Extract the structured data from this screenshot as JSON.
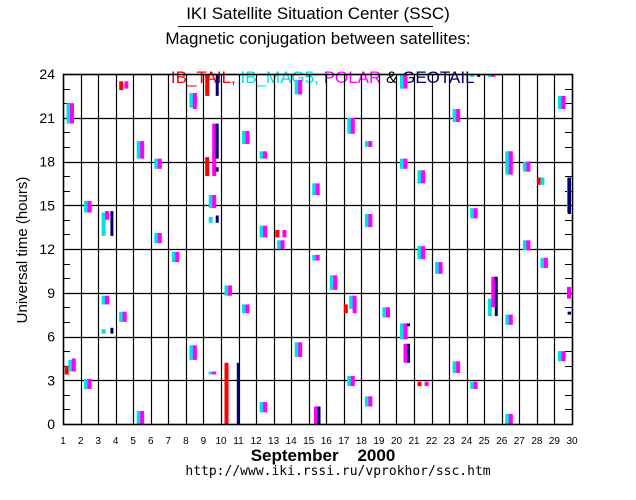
{
  "header": {
    "title": "IKI Satellite Situation Center (SSC)",
    "subtitle": "Magnetic conjugation between satellites:",
    "legend_parts": [
      {
        "text": "IB_TAIL,",
        "color": "#ff0000"
      },
      {
        "text": " IB_MAG5,",
        "color": "#00e0e0"
      },
      {
        "text": " POLAR",
        "color": "#ff00ff"
      },
      {
        "text": " & ",
        "color": "#000000"
      },
      {
        "text": "GEOTAIL",
        "color": "#000070"
      }
    ]
  },
  "footer": {
    "xlabel": "September    2000",
    "url": "http://www.iki.rssi.ru/vprokhor/ssc.htm"
  },
  "chart_data": {
    "type": "bar",
    "title": "Magnetic conjugation between satellites",
    "xlabel": "September 2000",
    "ylabel": "Universal time (hours)",
    "xlim": [
      1,
      30
    ],
    "ylim": [
      0,
      24
    ],
    "x_ticks": [
      "1",
      "2",
      "3",
      "4",
      "5",
      "6",
      "7",
      "8",
      "9",
      "10",
      "11",
      "12",
      "13",
      "14",
      "15",
      "16",
      "17",
      "18",
      "19",
      "20",
      "21",
      "22",
      "23",
      "24",
      "25",
      "26",
      "27",
      "28",
      "29",
      "30"
    ],
    "y_ticks": [
      "0",
      "3",
      "6",
      "9",
      "12",
      "15",
      "18",
      "21",
      "24"
    ],
    "grid": true,
    "legend": "top",
    "series_colors": {
      "IB_TAIL": "#ff0000",
      "IB_MAG5": "#00e0e0",
      "POLAR": "#ff00ff",
      "GEOTAIL": "#000070"
    },
    "segments": [
      {
        "sat": "IB_MAG5",
        "day": 1.2,
        "start": 20.6,
        "end": 22.0
      },
      {
        "sat": "POLAR",
        "day": 1.4,
        "start": 20.6,
        "end": 22.0
      },
      {
        "sat": "IB_TAIL",
        "day": 1.1,
        "start": 3.4,
        "end": 4.0
      },
      {
        "sat": "IB_MAG5",
        "day": 1.3,
        "start": 3.6,
        "end": 4.4
      },
      {
        "sat": "POLAR",
        "day": 1.5,
        "start": 3.6,
        "end": 4.5
      },
      {
        "sat": "IB_MAG5",
        "day": 2.2,
        "start": 14.5,
        "end": 15.3
      },
      {
        "sat": "POLAR",
        "day": 2.4,
        "start": 14.5,
        "end": 15.3
      },
      {
        "sat": "IB_MAG5",
        "day": 2.2,
        "start": 2.4,
        "end": 3.1
      },
      {
        "sat": "POLAR",
        "day": 2.4,
        "start": 2.4,
        "end": 3.1
      },
      {
        "sat": "IB_MAG5",
        "day": 3.2,
        "start": 12.9,
        "end": 14.5
      },
      {
        "sat": "POLAR",
        "day": 3.4,
        "start": 14.0,
        "end": 14.6
      },
      {
        "sat": "GEOTAIL",
        "day": 3.7,
        "start": 12.9,
        "end": 14.6
      },
      {
        "sat": "IB_MAG5",
        "day": 3.2,
        "start": 8.2,
        "end": 8.8
      },
      {
        "sat": "POLAR",
        "day": 3.4,
        "start": 8.2,
        "end": 8.8
      },
      {
        "sat": "IB_MAG5",
        "day": 3.2,
        "start": 6.2,
        "end": 6.5
      },
      {
        "sat": "GEOTAIL",
        "day": 3.7,
        "start": 6.2,
        "end": 6.6
      },
      {
        "sat": "IB_TAIL",
        "day": 4.2,
        "start": 22.9,
        "end": 23.5
      },
      {
        "sat": "POLAR",
        "day": 4.5,
        "start": 23.0,
        "end": 23.5
      },
      {
        "sat": "IB_MAG5",
        "day": 4.2,
        "start": 7.0,
        "end": 7.7
      },
      {
        "sat": "POLAR",
        "day": 4.4,
        "start": 7.0,
        "end": 7.7
      },
      {
        "sat": "IB_MAG5",
        "day": 5.2,
        "start": 18.2,
        "end": 19.4
      },
      {
        "sat": "POLAR",
        "day": 5.4,
        "start": 18.2,
        "end": 19.4
      },
      {
        "sat": "IB_MAG5",
        "day": 5.2,
        "start": 0.0,
        "end": 0.9
      },
      {
        "sat": "POLAR",
        "day": 5.4,
        "start": 0.0,
        "end": 0.9
      },
      {
        "sat": "IB_MAG5",
        "day": 6.2,
        "start": 17.5,
        "end": 18.2
      },
      {
        "sat": "POLAR",
        "day": 6.4,
        "start": 17.5,
        "end": 18.2
      },
      {
        "sat": "IB_MAG5",
        "day": 6.2,
        "start": 12.4,
        "end": 13.1
      },
      {
        "sat": "POLAR",
        "day": 6.4,
        "start": 12.4,
        "end": 13.1
      },
      {
        "sat": "IB_MAG5",
        "day": 7.2,
        "start": 11.1,
        "end": 11.8
      },
      {
        "sat": "POLAR",
        "day": 7.4,
        "start": 11.1,
        "end": 11.8
      },
      {
        "sat": "IB_MAG5",
        "day": 8.2,
        "start": 21.7,
        "end": 22.7
      },
      {
        "sat": "POLAR",
        "day": 8.4,
        "start": 21.6,
        "end": 22.7
      },
      {
        "sat": "IB_MAG5",
        "day": 8.2,
        "start": 4.4,
        "end": 5.4
      },
      {
        "sat": "POLAR",
        "day": 8.4,
        "start": 4.4,
        "end": 5.4
      },
      {
        "sat": "IB_TAIL",
        "day": 9.1,
        "start": 22.5,
        "end": 24.0
      },
      {
        "sat": "GEOTAIL",
        "day": 9.7,
        "start": 22.5,
        "end": 24.0
      },
      {
        "sat": "POLAR",
        "day": 9.5,
        "start": 17.3,
        "end": 20.6
      },
      {
        "sat": "GEOTAIL",
        "day": 9.7,
        "start": 18.2,
        "end": 20.6
      },
      {
        "sat": "IB_TAIL",
        "day": 9.1,
        "start": 17.0,
        "end": 18.3
      },
      {
        "sat": "POLAR",
        "day": 9.5,
        "start": 17.0,
        "end": 18.0
      },
      {
        "sat": "GEOTAIL",
        "day": 9.7,
        "start": 17.3,
        "end": 17.6
      },
      {
        "sat": "IB_MAG5",
        "day": 9.3,
        "start": 14.8,
        "end": 15.7
      },
      {
        "sat": "POLAR",
        "day": 9.5,
        "start": 14.8,
        "end": 15.7
      },
      {
        "sat": "IB_MAG5",
        "day": 9.3,
        "start": 13.8,
        "end": 14.2
      },
      {
        "sat": "GEOTAIL",
        "day": 9.7,
        "start": 13.8,
        "end": 14.3
      },
      {
        "sat": "IB_MAG5",
        "day": 9.3,
        "start": 3.4,
        "end": 3.6
      },
      {
        "sat": "POLAR",
        "day": 9.5,
        "start": 3.4,
        "end": 3.6
      },
      {
        "sat": "IB_TAIL",
        "day": 10.2,
        "start": 0.0,
        "end": 4.2
      },
      {
        "sat": "GEOTAIL",
        "day": 10.9,
        "start": 0.0,
        "end": 4.2
      },
      {
        "sat": "IB_MAG5",
        "day": 10.2,
        "start": 8.8,
        "end": 9.5
      },
      {
        "sat": "POLAR",
        "day": 10.4,
        "start": 8.8,
        "end": 9.5
      },
      {
        "sat": "IB_MAG5",
        "day": 11.2,
        "start": 19.2,
        "end": 20.1
      },
      {
        "sat": "POLAR",
        "day": 11.4,
        "start": 19.2,
        "end": 20.1
      },
      {
        "sat": "IB_MAG5",
        "day": 11.2,
        "start": 7.6,
        "end": 8.2
      },
      {
        "sat": "POLAR",
        "day": 11.4,
        "start": 7.6,
        "end": 8.2
      },
      {
        "sat": "IB_MAG5",
        "day": 12.2,
        "start": 18.2,
        "end": 18.7
      },
      {
        "sat": "POLAR",
        "day": 12.4,
        "start": 18.2,
        "end": 18.7
      },
      {
        "sat": "IB_MAG5",
        "day": 12.2,
        "start": 12.8,
        "end": 13.6
      },
      {
        "sat": "POLAR",
        "day": 12.4,
        "start": 12.8,
        "end": 13.6
      },
      {
        "sat": "IB_MAG5",
        "day": 12.2,
        "start": 0.8,
        "end": 1.5
      },
      {
        "sat": "POLAR",
        "day": 12.4,
        "start": 0.8,
        "end": 1.5
      },
      {
        "sat": "IB_TAIL",
        "day": 13.1,
        "start": 12.8,
        "end": 13.3
      },
      {
        "sat": "POLAR",
        "day": 13.5,
        "start": 12.8,
        "end": 13.3
      },
      {
        "sat": "IB_MAG5",
        "day": 13.2,
        "start": 12.0,
        "end": 12.6
      },
      {
        "sat": "POLAR",
        "day": 13.4,
        "start": 12.0,
        "end": 12.6
      },
      {
        "sat": "IB_MAG5",
        "day": 14.2,
        "start": 22.6,
        "end": 23.6
      },
      {
        "sat": "POLAR",
        "day": 14.4,
        "start": 22.6,
        "end": 23.6
      },
      {
        "sat": "IB_MAG5",
        "day": 14.2,
        "start": 4.6,
        "end": 5.6
      },
      {
        "sat": "POLAR",
        "day": 14.4,
        "start": 4.6,
        "end": 5.6
      },
      {
        "sat": "IB_MAG5",
        "day": 15.2,
        "start": 15.7,
        "end": 16.5
      },
      {
        "sat": "POLAR",
        "day": 15.4,
        "start": 15.7,
        "end": 16.5
      },
      {
        "sat": "IB_MAG5",
        "day": 15.2,
        "start": 11.2,
        "end": 11.6
      },
      {
        "sat": "POLAR",
        "day": 15.4,
        "start": 11.2,
        "end": 11.6
      },
      {
        "sat": "POLAR",
        "day": 15.3,
        "start": 0.0,
        "end": 1.2
      },
      {
        "sat": "GEOTAIL",
        "day": 15.5,
        "start": 0.0,
        "end": 1.2
      },
      {
        "sat": "IB_MAG5",
        "day": 16.2,
        "start": 9.2,
        "end": 10.2
      },
      {
        "sat": "POLAR",
        "day": 16.4,
        "start": 9.2,
        "end": 10.2
      },
      {
        "sat": "IB_MAG5",
        "day": 17.2,
        "start": 19.9,
        "end": 21.0
      },
      {
        "sat": "POLAR",
        "day": 17.4,
        "start": 19.9,
        "end": 21.0
      },
      {
        "sat": "IB_TAIL",
        "day": 17.0,
        "start": 7.6,
        "end": 8.2
      },
      {
        "sat": "IB_MAG5",
        "day": 17.3,
        "start": 7.9,
        "end": 8.8
      },
      {
        "sat": "POLAR",
        "day": 17.5,
        "start": 7.6,
        "end": 8.8
      },
      {
        "sat": "IB_MAG5",
        "day": 17.2,
        "start": 2.6,
        "end": 3.3
      },
      {
        "sat": "POLAR",
        "day": 17.4,
        "start": 2.6,
        "end": 3.3
      },
      {
        "sat": "IB_MAG5",
        "day": 18.2,
        "start": 19.0,
        "end": 19.4
      },
      {
        "sat": "POLAR",
        "day": 18.4,
        "start": 19.0,
        "end": 19.4
      },
      {
        "sat": "IB_MAG5",
        "day": 18.2,
        "start": 13.5,
        "end": 14.4
      },
      {
        "sat": "POLAR",
        "day": 18.4,
        "start": 13.5,
        "end": 14.4
      },
      {
        "sat": "IB_MAG5",
        "day": 18.2,
        "start": 1.2,
        "end": 1.9
      },
      {
        "sat": "POLAR",
        "day": 18.4,
        "start": 1.2,
        "end": 1.9
      },
      {
        "sat": "IB_MAG5",
        "day": 19.2,
        "start": 7.3,
        "end": 8.0
      },
      {
        "sat": "POLAR",
        "day": 19.4,
        "start": 7.3,
        "end": 8.0
      },
      {
        "sat": "IB_MAG5",
        "day": 20.2,
        "start": 23.0,
        "end": 24.0
      },
      {
        "sat": "POLAR",
        "day": 20.4,
        "start": 23.0,
        "end": 24.0
      },
      {
        "sat": "IB_MAG5",
        "day": 20.2,
        "start": 17.5,
        "end": 18.2
      },
      {
        "sat": "POLAR",
        "day": 20.4,
        "start": 17.5,
        "end": 18.2
      },
      {
        "sat": "IB_MAG5",
        "day": 20.2,
        "start": 5.8,
        "end": 6.9
      },
      {
        "sat": "POLAR",
        "day": 20.4,
        "start": 5.8,
        "end": 6.9
      },
      {
        "sat": "GEOTAIL",
        "day": 20.6,
        "start": 6.7,
        "end": 6.9
      },
      {
        "sat": "POLAR",
        "day": 20.4,
        "start": 4.2,
        "end": 5.5
      },
      {
        "sat": "GEOTAIL",
        "day": 20.6,
        "start": 4.2,
        "end": 5.5
      },
      {
        "sat": "IB_TAIL",
        "day": 21.2,
        "start": 2.6,
        "end": 2.9
      },
      {
        "sat": "POLAR",
        "day": 21.6,
        "start": 2.6,
        "end": 2.9
      },
      {
        "sat": "IB_MAG5",
        "day": 21.2,
        "start": 16.5,
        "end": 17.4
      },
      {
        "sat": "POLAR",
        "day": 21.4,
        "start": 16.5,
        "end": 17.4
      },
      {
        "sat": "IB_MAG5",
        "day": 21.2,
        "start": 11.3,
        "end": 12.2
      },
      {
        "sat": "POLAR",
        "day": 21.4,
        "start": 11.3,
        "end": 12.2
      },
      {
        "sat": "IB_MAG5",
        "day": 22.2,
        "start": 10.3,
        "end": 11.1
      },
      {
        "sat": "POLAR",
        "day": 22.4,
        "start": 10.3,
        "end": 11.1
      },
      {
        "sat": "IB_MAG5",
        "day": 23.2,
        "start": 20.7,
        "end": 21.6
      },
      {
        "sat": "POLAR",
        "day": 23.4,
        "start": 20.7,
        "end": 21.6
      },
      {
        "sat": "IB_MAG5",
        "day": 23.2,
        "start": 3.5,
        "end": 4.3
      },
      {
        "sat": "POLAR",
        "day": 23.4,
        "start": 3.5,
        "end": 4.3
      },
      {
        "sat": "IB_MAG5",
        "day": 24.2,
        "start": 23.8,
        "end": 24.0
      },
      {
        "sat": "GEOTAIL",
        "day": 24.6,
        "start": 23.8,
        "end": 24.0
      },
      {
        "sat": "IB_MAG5",
        "day": 24.2,
        "start": 14.1,
        "end": 14.8
      },
      {
        "sat": "POLAR",
        "day": 24.4,
        "start": 14.1,
        "end": 14.8
      },
      {
        "sat": "IB_MAG5",
        "day": 24.2,
        "start": 2.4,
        "end": 2.9
      },
      {
        "sat": "POLAR",
        "day": 24.4,
        "start": 2.4,
        "end": 2.9
      },
      {
        "sat": "IB_MAG5",
        "day": 25.2,
        "start": 23.8,
        "end": 24.0
      },
      {
        "sat": "POLAR",
        "day": 25.4,
        "start": 23.8,
        "end": 24.0
      },
      {
        "sat": "IB_MAG5",
        "day": 25.2,
        "start": 7.4,
        "end": 8.6
      },
      {
        "sat": "POLAR",
        "day": 25.4,
        "start": 8.0,
        "end": 10.1
      },
      {
        "sat": "GEOTAIL",
        "day": 25.6,
        "start": 7.4,
        "end": 10.1
      },
      {
        "sat": "IB_MAG5",
        "day": 26.2,
        "start": 17.1,
        "end": 18.7
      },
      {
        "sat": "POLAR",
        "day": 26.4,
        "start": 17.1,
        "end": 18.7
      },
      {
        "sat": "IB_MAG5",
        "day": 26.2,
        "start": 6.8,
        "end": 7.5
      },
      {
        "sat": "POLAR",
        "day": 26.4,
        "start": 6.8,
        "end": 7.5
      },
      {
        "sat": "IB_MAG5",
        "day": 27.2,
        "start": 17.3,
        "end": 18.0
      },
      {
        "sat": "POLAR",
        "day": 27.4,
        "start": 17.3,
        "end": 18.0
      },
      {
        "sat": "IB_MAG5",
        "day": 27.2,
        "start": 11.9,
        "end": 12.6
      },
      {
        "sat": "POLAR",
        "day": 27.4,
        "start": 11.9,
        "end": 12.6
      },
      {
        "sat": "IB_MAG5",
        "day": 26.2,
        "start": 0.0,
        "end": 0.7
      },
      {
        "sat": "POLAR",
        "day": 26.4,
        "start": 0.0,
        "end": 0.7
      },
      {
        "sat": "IB_TAIL",
        "day": 28.0,
        "start": 16.4,
        "end": 16.9
      },
      {
        "sat": "IB_MAG5",
        "day": 28.2,
        "start": 16.4,
        "end": 16.9
      },
      {
        "sat": "IB_MAG5",
        "day": 28.2,
        "start": 10.7,
        "end": 11.4
      },
      {
        "sat": "POLAR",
        "day": 28.4,
        "start": 10.7,
        "end": 11.4
      },
      {
        "sat": "IB_MAG5",
        "day": 29.2,
        "start": 21.6,
        "end": 22.5
      },
      {
        "sat": "POLAR",
        "day": 29.4,
        "start": 21.6,
        "end": 22.5
      },
      {
        "sat": "IB_MAG5",
        "day": 29.2,
        "start": 4.3,
        "end": 5.0
      },
      {
        "sat": "POLAR",
        "day": 29.4,
        "start": 4.3,
        "end": 5.0
      },
      {
        "sat": "IB_MAG5",
        "day": 30.0,
        "start": 14.4,
        "end": 15.8
      },
      {
        "sat": "POLAR",
        "day": 30.2,
        "start": 14.5,
        "end": 16.9
      },
      {
        "sat": "GEOTAIL",
        "day": 30.4,
        "start": 14.4,
        "end": 16.9
      },
      {
        "sat": "IB_MAG5",
        "day": 30.0,
        "start": 7.5,
        "end": 7.7
      },
      {
        "sat": "GEOTAIL",
        "day": 30.4,
        "start": 7.5,
        "end": 7.7
      },
      {
        "sat": "IB_MAG5",
        "day": 30.6,
        "start": 8.6,
        "end": 9.4
      },
      {
        "sat": "POLAR",
        "day": 30.75,
        "start": 8.6,
        "end": 9.4
      }
    ]
  }
}
